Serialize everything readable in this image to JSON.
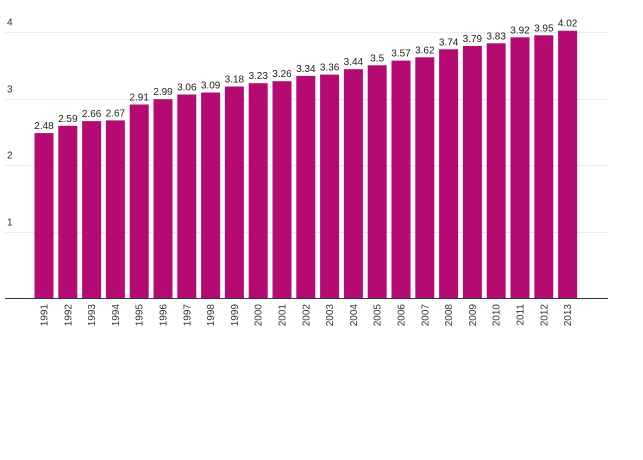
{
  "chart_data": {
    "type": "bar",
    "title": "",
    "xlabel": "",
    "ylabel": "",
    "categories": [
      "1991",
      "1992",
      "1993",
      "1994",
      "1995",
      "1996",
      "1997",
      "1998",
      "1999",
      "2000",
      "2001",
      "2002",
      "2003",
      "2004",
      "2005",
      "2006",
      "2007",
      "2008",
      "2009",
      "2010",
      "2011",
      "2012",
      "2013"
    ],
    "values": [
      2.48,
      2.59,
      2.66,
      2.67,
      2.91,
      2.99,
      3.06,
      3.09,
      3.18,
      3.23,
      3.26,
      3.34,
      3.36,
      3.44,
      3.5,
      3.57,
      3.62,
      3.74,
      3.79,
      3.83,
      3.92,
      3.95,
      4.02
    ],
    "value_labels": [
      "2.48",
      "2.59",
      "2.66",
      "2.67",
      "2.91",
      "2.99",
      "3.06",
      "3.09",
      "3.18",
      "3.23",
      "3.26",
      "3.34",
      "3.36",
      "3.44",
      "3.5",
      "3.57",
      "3.62",
      "3.74",
      "3.79",
      "3.83",
      "3.92",
      "3.95",
      "4.02"
    ],
    "ylim": [
      0,
      4
    ],
    "yticks": [
      1,
      2,
      3,
      4
    ],
    "ytick_labels": [
      "1",
      "2",
      "3",
      "4"
    ],
    "grid": true,
    "legend": "none",
    "bar_color": "#b50a72"
  }
}
